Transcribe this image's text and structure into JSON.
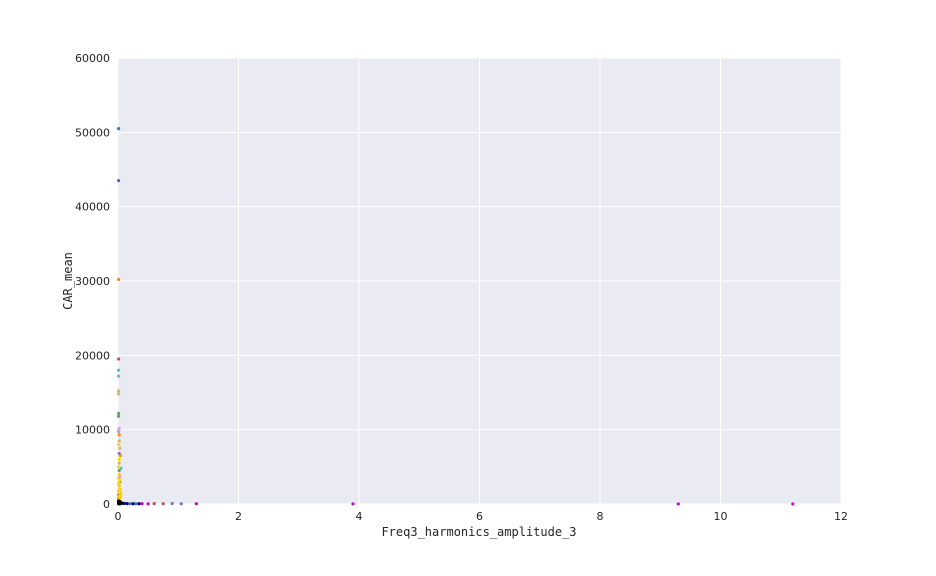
{
  "chart_data": {
    "type": "scatter",
    "title": "",
    "xlabel": "Freq3_harmonics_amplitude_3",
    "ylabel": "CAR_mean",
    "xlim": [
      0,
      12
    ],
    "ylim": [
      0,
      60000
    ],
    "xticks": [
      0,
      2,
      4,
      6,
      8,
      10,
      12
    ],
    "yticks": [
      0,
      10000,
      20000,
      30000,
      40000,
      50000,
      60000
    ],
    "grid": true,
    "background": "#EAEAF2",
    "gridColor": "#FFFFFF",
    "series": [
      {
        "color": "#4C72B0",
        "points": [
          [
            0.01,
            50500
          ],
          [
            0.01,
            43500
          ],
          [
            0.01,
            1200
          ],
          [
            0.02,
            300
          ],
          [
            0.1,
            60
          ],
          [
            0.2,
            40
          ],
          [
            0.3,
            30
          ]
        ]
      },
      {
        "color": "#55A868",
        "points": [
          [
            0.01,
            12200
          ],
          [
            0.01,
            11800
          ],
          [
            0.02,
            4500
          ],
          [
            0.03,
            3000
          ],
          [
            0.01,
            800
          ],
          [
            0.05,
            200
          ]
        ]
      },
      {
        "color": "#C44E52",
        "points": [
          [
            0.01,
            19500
          ],
          [
            0.02,
            2500
          ],
          [
            0.6,
            50
          ],
          [
            0.75,
            40
          ],
          [
            0.02,
            600
          ]
        ]
      },
      {
        "color": "#8172B2",
        "points": [
          [
            0.01,
            9800
          ],
          [
            0.02,
            6800
          ],
          [
            0.03,
            1500
          ],
          [
            0.9,
            60
          ],
          [
            1.05,
            40
          ]
        ]
      },
      {
        "color": "#CCB974",
        "points": [
          [
            0.01,
            15200
          ],
          [
            0.01,
            14800
          ],
          [
            0.02,
            8500
          ],
          [
            0.03,
            7500
          ],
          [
            0.02,
            5500
          ]
        ]
      },
      {
        "color": "#64B5CD",
        "points": [
          [
            0.01,
            18000
          ],
          [
            0.01,
            17200
          ],
          [
            0.05,
            4800
          ],
          [
            0.02,
            1000
          ]
        ]
      },
      {
        "color": "#FF8C00",
        "points": [
          [
            0.01,
            30200
          ],
          [
            0.02,
            9300
          ],
          [
            0.04,
            6500
          ],
          [
            0.03,
            2000
          ],
          [
            0.02,
            1500
          ],
          [
            0.03,
            900
          ]
        ]
      },
      {
        "color": "#FFD700",
        "points": [
          [
            0.01,
            8000
          ],
          [
            0.02,
            6000
          ],
          [
            0.01,
            5000
          ],
          [
            0.02,
            4000
          ],
          [
            0.01,
            3500
          ],
          [
            0.03,
            3200
          ],
          [
            0.01,
            2800
          ],
          [
            0.02,
            2500
          ],
          [
            0.04,
            2000
          ],
          [
            0.01,
            1800
          ],
          [
            0.02,
            1500
          ],
          [
            0.05,
            1200
          ],
          [
            0.01,
            1000
          ],
          [
            0.03,
            700
          ]
        ]
      },
      {
        "color": "#DDA0DD",
        "points": [
          [
            0.02,
            10200
          ],
          [
            0.01,
            9900
          ],
          [
            0.03,
            3700
          ]
        ]
      },
      {
        "color": "#CC00CC",
        "points": [
          [
            0.4,
            30
          ],
          [
            0.5,
            20
          ],
          [
            1.3,
            40
          ],
          [
            3.9,
            10
          ],
          [
            9.3,
            10
          ],
          [
            11.2,
            10
          ]
        ]
      },
      {
        "color": "#000080",
        "points": [
          [
            0.15,
            50
          ],
          [
            0.25,
            40
          ],
          [
            0.35,
            30
          ],
          [
            0.1,
            80
          ]
        ]
      },
      {
        "color": "#000000",
        "points": [
          [
            0.01,
            400
          ],
          [
            0.02,
            350
          ],
          [
            0.03,
            300
          ],
          [
            0.04,
            250
          ],
          [
            0.05,
            200
          ],
          [
            0.01,
            200
          ],
          [
            0.02,
            150
          ],
          [
            0.03,
            100
          ],
          [
            0.06,
            80
          ],
          [
            0.01,
            50
          ],
          [
            0.02,
            30
          ],
          [
            0.03,
            20
          ]
        ]
      }
    ]
  }
}
